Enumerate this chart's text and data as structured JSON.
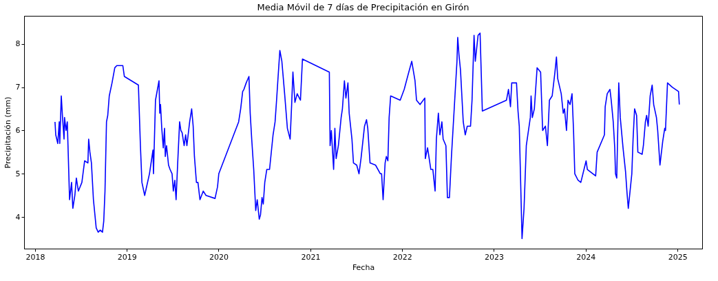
{
  "chart_data": {
    "type": "line",
    "title": "Media Móvil de 7 días de Precipitación en Girón",
    "xlabel": "Fecha",
    "ylabel": "Precipitación (mm)",
    "xlim": [
      "2017-11-18",
      "2025-04-09"
    ],
    "ylim": [
      3.27,
      8.65
    ],
    "xticks": [
      {
        "value": "2018-01-01",
        "label": "2018"
      },
      {
        "value": "2019-01-01",
        "label": "2019"
      },
      {
        "value": "2020-01-01",
        "label": "2020"
      },
      {
        "value": "2021-01-01",
        "label": "2021"
      },
      {
        "value": "2022-01-01",
        "label": "2022"
      },
      {
        "value": "2023-01-01",
        "label": "2023"
      },
      {
        "value": "2024-01-01",
        "label": "2024"
      },
      {
        "value": "2025-01-01",
        "label": "2025"
      }
    ],
    "yticks": [
      4,
      5,
      6,
      7,
      8
    ],
    "grid": false,
    "marker": "none",
    "line_style": "solid",
    "x": [
      "2018-03-21",
      "2018-03-24",
      "2018-04-01",
      "2018-04-07",
      "2018-04-09",
      "2018-04-15",
      "2018-04-20",
      "2018-04-26",
      "2018-04-28",
      "2018-05-04",
      "2018-05-09",
      "2018-05-18",
      "2018-05-26",
      "2018-05-31",
      "2018-06-08",
      "2018-06-14",
      "2018-06-22",
      "2018-07-06",
      "2018-07-17",
      "2018-07-30",
      "2018-08-02",
      "2018-08-07",
      "2018-08-13",
      "2018-08-21",
      "2018-09-01",
      "2018-09-09",
      "2018-09-17",
      "2018-09-26",
      "2018-10-01",
      "2018-10-06",
      "2018-10-12",
      "2018-10-17",
      "2018-10-23",
      "2018-11-03",
      "2018-11-14",
      "2018-11-22",
      "2018-12-16",
      "2018-12-22",
      "2019-02-16",
      "2019-02-24",
      "2019-03-02",
      "2019-03-13",
      "2019-04-01",
      "2019-04-15",
      "2019-04-17",
      "2019-04-25",
      "2019-05-09",
      "2019-05-12",
      "2019-05-15",
      "2019-05-20",
      "2019-05-26",
      "2019-05-31",
      "2019-06-03",
      "2019-06-08",
      "2019-06-16",
      "2019-06-22",
      "2019-06-30",
      "2019-07-05",
      "2019-07-11",
      "2019-07-16",
      "2019-07-22",
      "2019-07-30",
      "2019-08-04",
      "2019-08-09",
      "2019-08-17",
      "2019-08-23",
      "2019-08-28",
      "2019-09-08",
      "2019-09-16",
      "2019-09-22",
      "2019-09-27",
      "2019-10-05",
      "2019-10-11",
      "2019-10-19",
      "2019-11-01",
      "2019-11-12",
      "2019-12-18",
      "2019-12-28",
      "2020-01-02",
      "2020-03-21",
      "2020-03-29",
      "2020-04-06",
      "2020-04-11",
      "2020-04-20",
      "2020-05-01",
      "2020-05-06",
      "2020-05-12",
      "2020-05-20",
      "2020-05-28",
      "2020-06-03",
      "2020-06-11",
      "2020-06-16",
      "2020-06-22",
      "2020-06-27",
      "2020-07-03",
      "2020-07-11",
      "2020-07-22",
      "2020-08-05",
      "2020-08-13",
      "2020-08-19",
      "2020-08-24",
      "2020-09-01",
      "2020-09-09",
      "2020-09-20",
      "2020-10-01",
      "2020-10-12",
      "2020-10-18",
      "2020-10-23",
      "2020-10-31",
      "2020-11-09",
      "2020-11-22",
      "2020-11-30",
      "2021-03-17",
      "2021-03-20",
      "2021-03-25",
      "2021-04-03",
      "2021-04-08",
      "2021-04-13",
      "2021-04-22",
      "2021-05-03",
      "2021-05-08",
      "2021-05-16",
      "2021-05-22",
      "2021-05-30",
      "2021-06-04",
      "2021-06-15",
      "2021-06-21",
      "2021-07-04",
      "2021-07-13",
      "2021-07-21",
      "2021-08-04",
      "2021-08-12",
      "2021-08-17",
      "2021-08-26",
      "2021-09-17",
      "2021-10-06",
      "2021-10-11",
      "2021-10-14",
      "2021-10-17",
      "2021-10-25",
      "2021-10-30",
      "2021-11-05",
      "2021-11-10",
      "2021-11-16",
      "2021-12-24",
      "2022-01-09",
      "2022-01-25",
      "2022-02-08",
      "2022-02-21",
      "2022-02-27",
      "2022-03-13",
      "2022-04-01",
      "2022-04-03",
      "2022-04-12",
      "2022-04-25",
      "2022-05-03",
      "2022-05-12",
      "2022-05-17",
      "2022-05-25",
      "2022-05-31",
      "2022-06-08",
      "2022-06-13",
      "2022-06-24",
      "2022-06-30",
      "2022-07-08",
      "2022-07-16",
      "2022-07-30",
      "2022-08-07",
      "2022-08-10",
      "2022-08-15",
      "2022-08-21",
      "2022-09-01",
      "2022-09-09",
      "2022-09-17",
      "2022-09-30",
      "2022-10-06",
      "2022-10-14",
      "2022-10-19",
      "2022-10-30",
      "2022-11-07",
      "2022-11-16",
      "2023-02-20",
      "2023-02-28",
      "2023-03-08",
      "2023-03-13",
      "2023-04-01",
      "2023-04-07",
      "2023-04-12",
      "2023-04-23",
      "2023-05-01",
      "2023-05-10",
      "2023-05-26",
      "2023-05-29",
      "2023-06-03",
      "2023-06-11",
      "2023-06-22",
      "2023-07-06",
      "2023-07-14",
      "2023-07-25",
      "2023-08-02",
      "2023-08-10",
      "2023-08-21",
      "2023-09-01",
      "2023-09-07",
      "2023-09-12",
      "2023-09-26",
      "2023-10-04",
      "2023-10-09",
      "2023-10-17",
      "2023-10-23",
      "2023-10-31",
      "2023-11-08",
      "2023-11-14",
      "2023-11-19",
      "2023-12-02",
      "2023-12-13",
      "2024-01-03",
      "2024-01-08",
      "2024-02-10",
      "2024-02-16",
      "2024-03-16",
      "2024-03-19",
      "2024-03-27",
      "2024-04-07",
      "2024-04-12",
      "2024-04-20",
      "2024-04-26",
      "2024-04-29",
      "2024-05-04",
      "2024-05-12",
      "2024-05-18",
      "2024-05-29",
      "2024-06-08",
      "2024-06-14",
      "2024-06-19",
      "2024-07-03",
      "2024-07-08",
      "2024-07-14",
      "2024-07-22",
      "2024-07-27",
      "2024-08-13",
      "2024-08-18",
      "2024-08-26",
      "2024-08-31",
      "2024-09-06",
      "2024-09-14",
      "2024-09-22",
      "2024-09-28",
      "2024-10-09",
      "2024-10-14",
      "2024-10-23",
      "2024-11-03",
      "2024-11-11",
      "2024-11-14",
      "2024-11-22",
      "2024-12-11",
      "2025-01-05",
      "2025-01-08"
    ],
    "series": [
      {
        "color": "#0000ff",
        "values": [
          6.2,
          5.9,
          5.7,
          6.2,
          5.7,
          6.8,
          6.3,
          5.8,
          6.3,
          6.0,
          6.2,
          4.4,
          4.8,
          4.2,
          4.5,
          4.9,
          4.6,
          4.8,
          5.3,
          5.25,
          5.8,
          5.5,
          5.25,
          4.4,
          3.75,
          3.65,
          3.7,
          3.65,
          3.9,
          4.6,
          6.2,
          6.35,
          6.8,
          7.1,
          7.45,
          7.5,
          7.5,
          7.25,
          7.05,
          5.65,
          4.8,
          4.5,
          5.0,
          5.55,
          5.0,
          6.7,
          7.15,
          6.4,
          6.6,
          6.05,
          5.6,
          6.05,
          5.4,
          5.65,
          5.2,
          5.1,
          5.0,
          4.6,
          4.85,
          4.4,
          5.2,
          6.2,
          6.0,
          5.95,
          5.65,
          5.9,
          5.65,
          6.2,
          6.5,
          6.1,
          5.4,
          4.8,
          4.8,
          4.4,
          4.6,
          4.5,
          4.43,
          4.7,
          5.0,
          6.2,
          6.5,
          6.9,
          6.95,
          7.1,
          7.25,
          6.4,
          5.8,
          5.1,
          4.15,
          4.4,
          3.95,
          4.05,
          4.45,
          4.3,
          4.8,
          5.1,
          5.1,
          5.9,
          6.2,
          6.7,
          7.15,
          7.85,
          7.6,
          6.85,
          6.05,
          5.8,
          6.6,
          7.35,
          6.65,
          6.85,
          6.7,
          7.65,
          7.35,
          5.65,
          6.0,
          5.1,
          6.05,
          5.35,
          5.65,
          6.3,
          6.5,
          7.15,
          6.75,
          7.1,
          6.4,
          5.8,
          5.25,
          5.2,
          5.0,
          5.35,
          6.1,
          6.25,
          6.05,
          5.25,
          5.2,
          5.0,
          5.0,
          4.7,
          4.4,
          5.25,
          5.4,
          5.3,
          6.3,
          6.8,
          6.7,
          6.95,
          7.3,
          7.6,
          7.15,
          6.7,
          6.6,
          6.75,
          5.35,
          5.6,
          5.1,
          5.1,
          4.6,
          5.8,
          6.4,
          5.9,
          6.2,
          5.8,
          5.65,
          4.45,
          4.45,
          5.4,
          6.8,
          7.6,
          8.15,
          7.75,
          7.4,
          6.2,
          5.9,
          6.1,
          6.1,
          6.7,
          8.2,
          7.6,
          8.2,
          8.25,
          6.45,
          6.7,
          6.95,
          6.55,
          7.1,
          7.1,
          6.45,
          6.1,
          3.5,
          4.2,
          5.65,
          6.3,
          6.8,
          6.3,
          6.5,
          7.45,
          7.35,
          6.0,
          6.1,
          5.65,
          6.7,
          6.8,
          7.35,
          7.7,
          7.2,
          6.85,
          6.4,
          6.5,
          6.0,
          6.7,
          6.6,
          6.85,
          6.0,
          5.0,
          4.85,
          4.8,
          5.3,
          5.1,
          4.95,
          5.5,
          5.9,
          6.55,
          6.85,
          6.95,
          6.7,
          6.2,
          5.6,
          5.0,
          4.9,
          7.1,
          6.3,
          5.6,
          5.05,
          4.55,
          4.2,
          5.0,
          5.8,
          6.5,
          6.35,
          5.5,
          5.45,
          5.65,
          6.2,
          6.35,
          6.1,
          6.8,
          7.05,
          6.6,
          6.3,
          6.0,
          5.2,
          5.75,
          6.05,
          6.0,
          7.1,
          7.0,
          6.9,
          6.6
        ]
      }
    ]
  }
}
